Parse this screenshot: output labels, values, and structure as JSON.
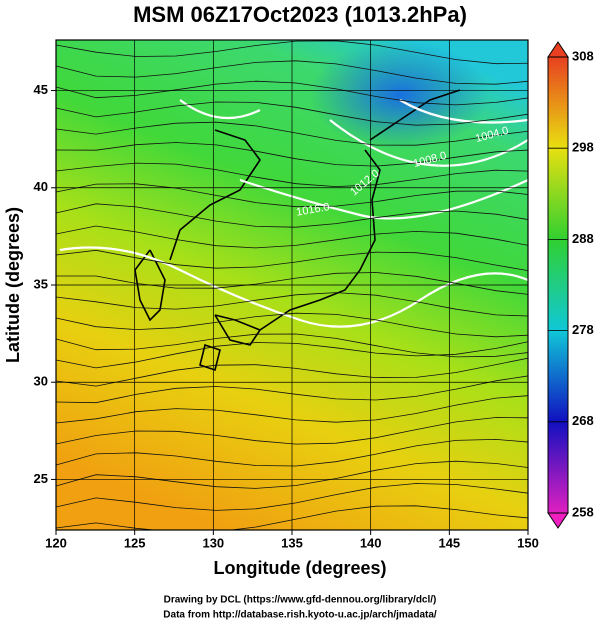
{
  "title": "MSM 06Z17Oct2023 (1013.2hPa)",
  "map": {
    "xlabel": "Longitude (degrees)",
    "ylabel": "Latitude  (degrees)",
    "xlim": [
      120,
      150
    ],
    "ylim": [
      22.4,
      47.6
    ],
    "xticks": [
      120,
      125,
      130,
      135,
      140,
      145,
      150
    ],
    "yticks": [
      25,
      30,
      35,
      40,
      45
    ],
    "contour_labels": [
      "1016.0",
      "1012.0",
      "1008.0",
      "1004.0"
    ]
  },
  "colorbar": {
    "lim": [
      258,
      308
    ],
    "ticks": [
      258,
      268,
      278,
      288,
      298,
      308
    ]
  },
  "footer": [
    "Drawing by DCL (https://www.gfd-dennou.org/library/dcl/)",
    "Data from http://database.rish.kyoto-u.ac.jp/arch/jmadata/"
  ]
}
